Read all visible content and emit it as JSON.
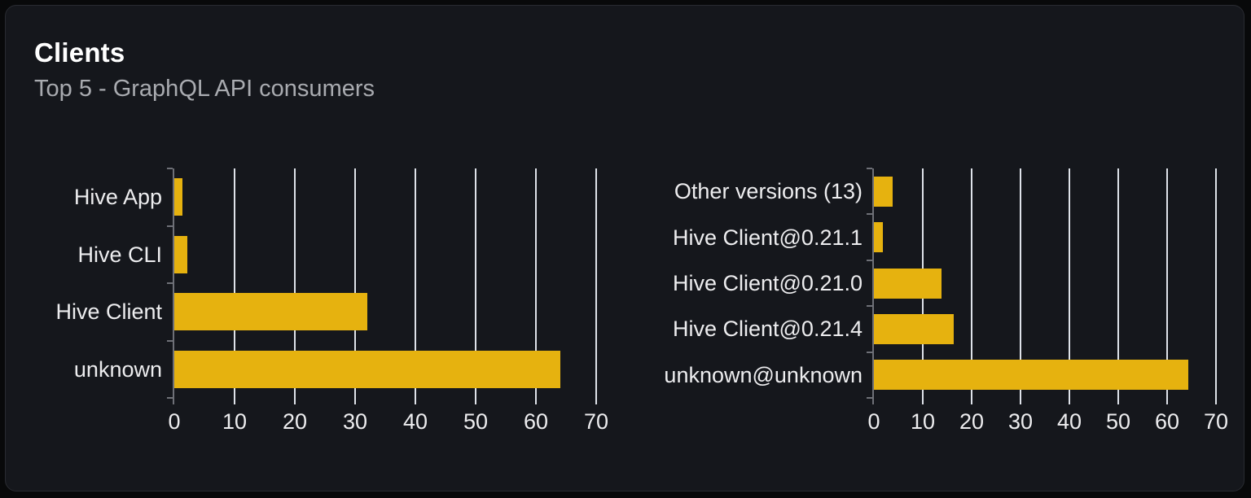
{
  "card": {
    "title": "Clients",
    "subtitle": "Top 5 - GraphQL API consumers"
  },
  "colors": {
    "page_background": "#08090A",
    "card_background": "#15171C",
    "card_border": "#292B31",
    "title_text": "#FFFFFF",
    "subtitle_text": "#A9ABB0",
    "bar": "#E6B20F",
    "gridline": "#DEE2E9",
    "axis": "#6E7077",
    "label_text": "#EDEDEF"
  },
  "chart_data": [
    {
      "type": "bar",
      "orientation": "horizontal",
      "title": "Top 5 GraphQL API consumers by client name",
      "categories": [
        "Hive App",
        "Hive CLI",
        "Hive Client",
        "unknown"
      ],
      "values": [
        1.4,
        2.1,
        32,
        64
      ],
      "xlabel": "",
      "ylabel": "",
      "xlim": [
        0,
        70
      ],
      "xticks": [
        "0",
        "10",
        "20",
        "30",
        "40",
        "50",
        "60",
        "70"
      ],
      "grid": true,
      "legend": false
    },
    {
      "type": "bar",
      "orientation": "horizontal",
      "title": "Top 5 GraphQL API consumers by client version",
      "categories": [
        "Other versions (13)",
        "Hive Client@0.21.1",
        "Hive Client@0.21.0",
        "Hive Client@0.21.4",
        "unknown@unknown"
      ],
      "values": [
        3.9,
        1.8,
        13.8,
        16.4,
        64.3
      ],
      "xlabel": "",
      "ylabel": "",
      "xlim": [
        0,
        70
      ],
      "xticks": [
        "0",
        "10",
        "20",
        "30",
        "40",
        "50",
        "60",
        "70"
      ],
      "grid": true,
      "legend": false
    }
  ]
}
